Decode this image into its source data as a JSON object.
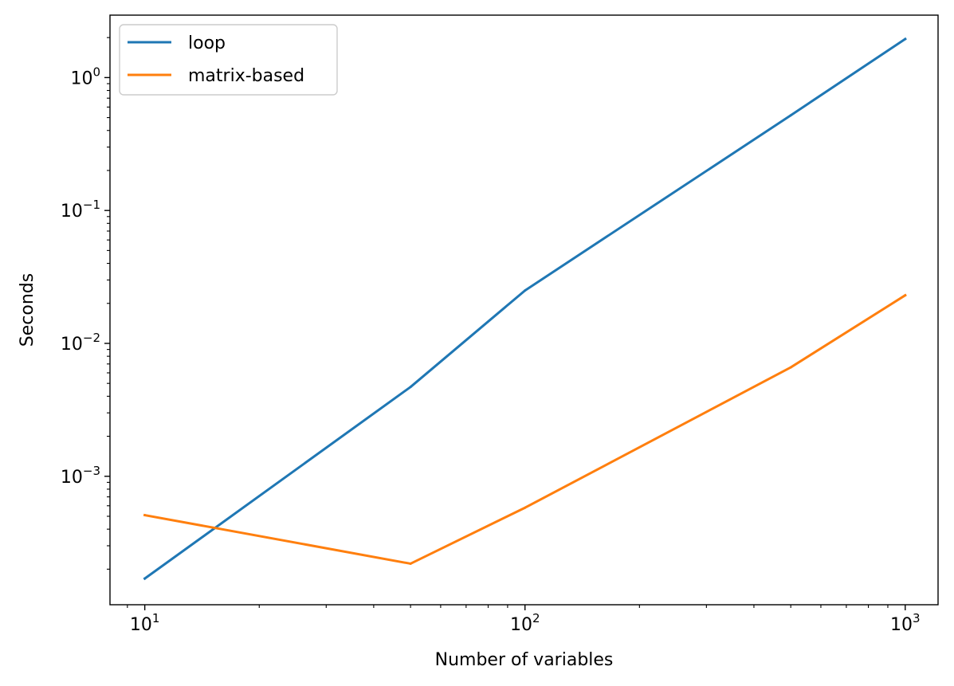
{
  "chart_data": {
    "type": "line",
    "title": "",
    "xlabel": "Number of variables",
    "ylabel": "Seconds",
    "xscale": "log",
    "yscale": "log",
    "xlim": [
      8.1,
      1220
    ],
    "ylim": [
      0.000108,
      2.95
    ],
    "x_ticks": [
      {
        "value": 10,
        "base": "10",
        "exp": "1"
      },
      {
        "value": 100,
        "base": "10",
        "exp": "2"
      },
      {
        "value": 1000,
        "base": "10",
        "exp": "3"
      }
    ],
    "y_ticks": [
      {
        "value": 0.001,
        "base": "10",
        "exp": "−3"
      },
      {
        "value": 0.01,
        "base": "10",
        "exp": "−2"
      },
      {
        "value": 0.1,
        "base": "10",
        "exp": "−1"
      },
      {
        "value": 1,
        "base": "10",
        "exp": "0"
      }
    ],
    "grid": false,
    "legend_position": "top-left",
    "x": [
      10,
      50,
      100,
      500,
      1000
    ],
    "series": [
      {
        "name": "loop",
        "color": "#1f77b4",
        "values": [
          0.00017,
          0.0047,
          0.025,
          0.52,
          1.95
        ]
      },
      {
        "name": "matrix-based",
        "color": "#ff7f0e",
        "values": [
          0.00051,
          0.00022,
          0.00058,
          0.0066,
          0.023
        ]
      }
    ]
  }
}
